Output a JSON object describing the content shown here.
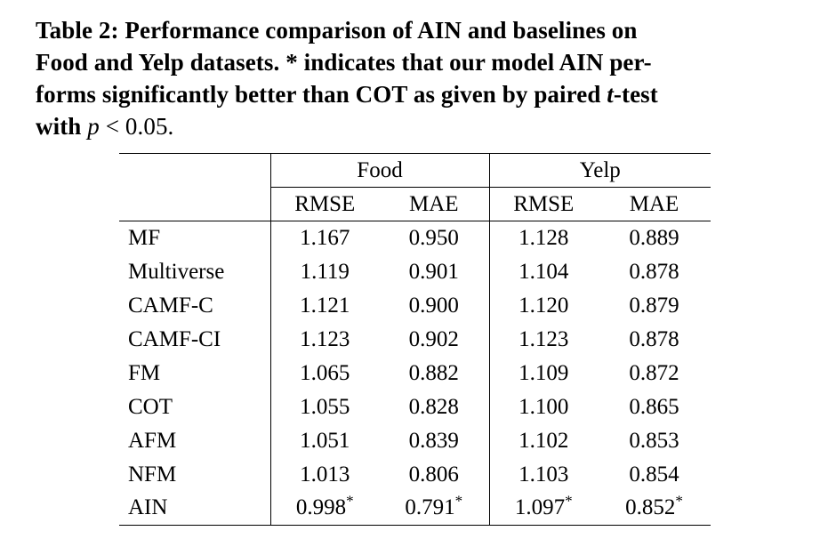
{
  "caption": {
    "lines": [
      [
        {
          "t": "Table 2: Performance comparison of AIN and baselines on",
          "s": "b"
        }
      ],
      [
        {
          "t": "Food and Yelp datasets. * indicates that our model AIN per-",
          "s": "b"
        }
      ],
      [
        {
          "t": "forms significantly better than COT as given by paired ",
          "s": "b"
        },
        {
          "t": "t",
          "s": "bi"
        },
        {
          "t": "-test",
          "s": "b"
        }
      ],
      [
        {
          "t": "with ",
          "s": "b"
        },
        {
          "t": "p",
          "s": "i"
        },
        {
          "t": " < 0.05.",
          "s": "r"
        }
      ]
    ]
  },
  "table": {
    "groups": [
      {
        "label": "Food"
      },
      {
        "label": "Yelp"
      }
    ],
    "columns": [
      "RMSE",
      "MAE",
      "RMSE",
      "MAE"
    ],
    "rows": [
      {
        "label": "MF",
        "values": [
          "1.167",
          "0.950",
          "1.128",
          "0.889"
        ],
        "bold": false
      },
      {
        "label": "Multiverse",
        "values": [
          "1.119",
          "0.901",
          "1.104",
          "0.878"
        ],
        "bold": false
      },
      {
        "label": "CAMF-C",
        "values": [
          "1.121",
          "0.900",
          "1.120",
          "0.879"
        ],
        "bold": false
      },
      {
        "label": "CAMF-CI",
        "values": [
          "1.123",
          "0.902",
          "1.123",
          "0.878"
        ],
        "bold": false
      },
      {
        "label": "FM",
        "values": [
          "1.065",
          "0.882",
          "1.109",
          "0.872"
        ],
        "bold": false
      },
      {
        "label": "COT",
        "values": [
          "1.055",
          "0.828",
          "1.100",
          "0.865"
        ],
        "bold": false
      },
      {
        "label": "AFM",
        "values": [
          "1.051",
          "0.839",
          "1.102",
          "0.853"
        ],
        "bold": false
      },
      {
        "label": "NFM",
        "values": [
          "1.013",
          "0.806",
          "1.103",
          "0.854"
        ],
        "bold": false
      },
      {
        "label": "AIN",
        "values": [
          "0.998*",
          "0.791*",
          "1.097*",
          "0.852*"
        ],
        "bold": true
      }
    ]
  },
  "colors": {
    "text": "#000000",
    "background": "#ffffff",
    "rule": "#000000"
  }
}
